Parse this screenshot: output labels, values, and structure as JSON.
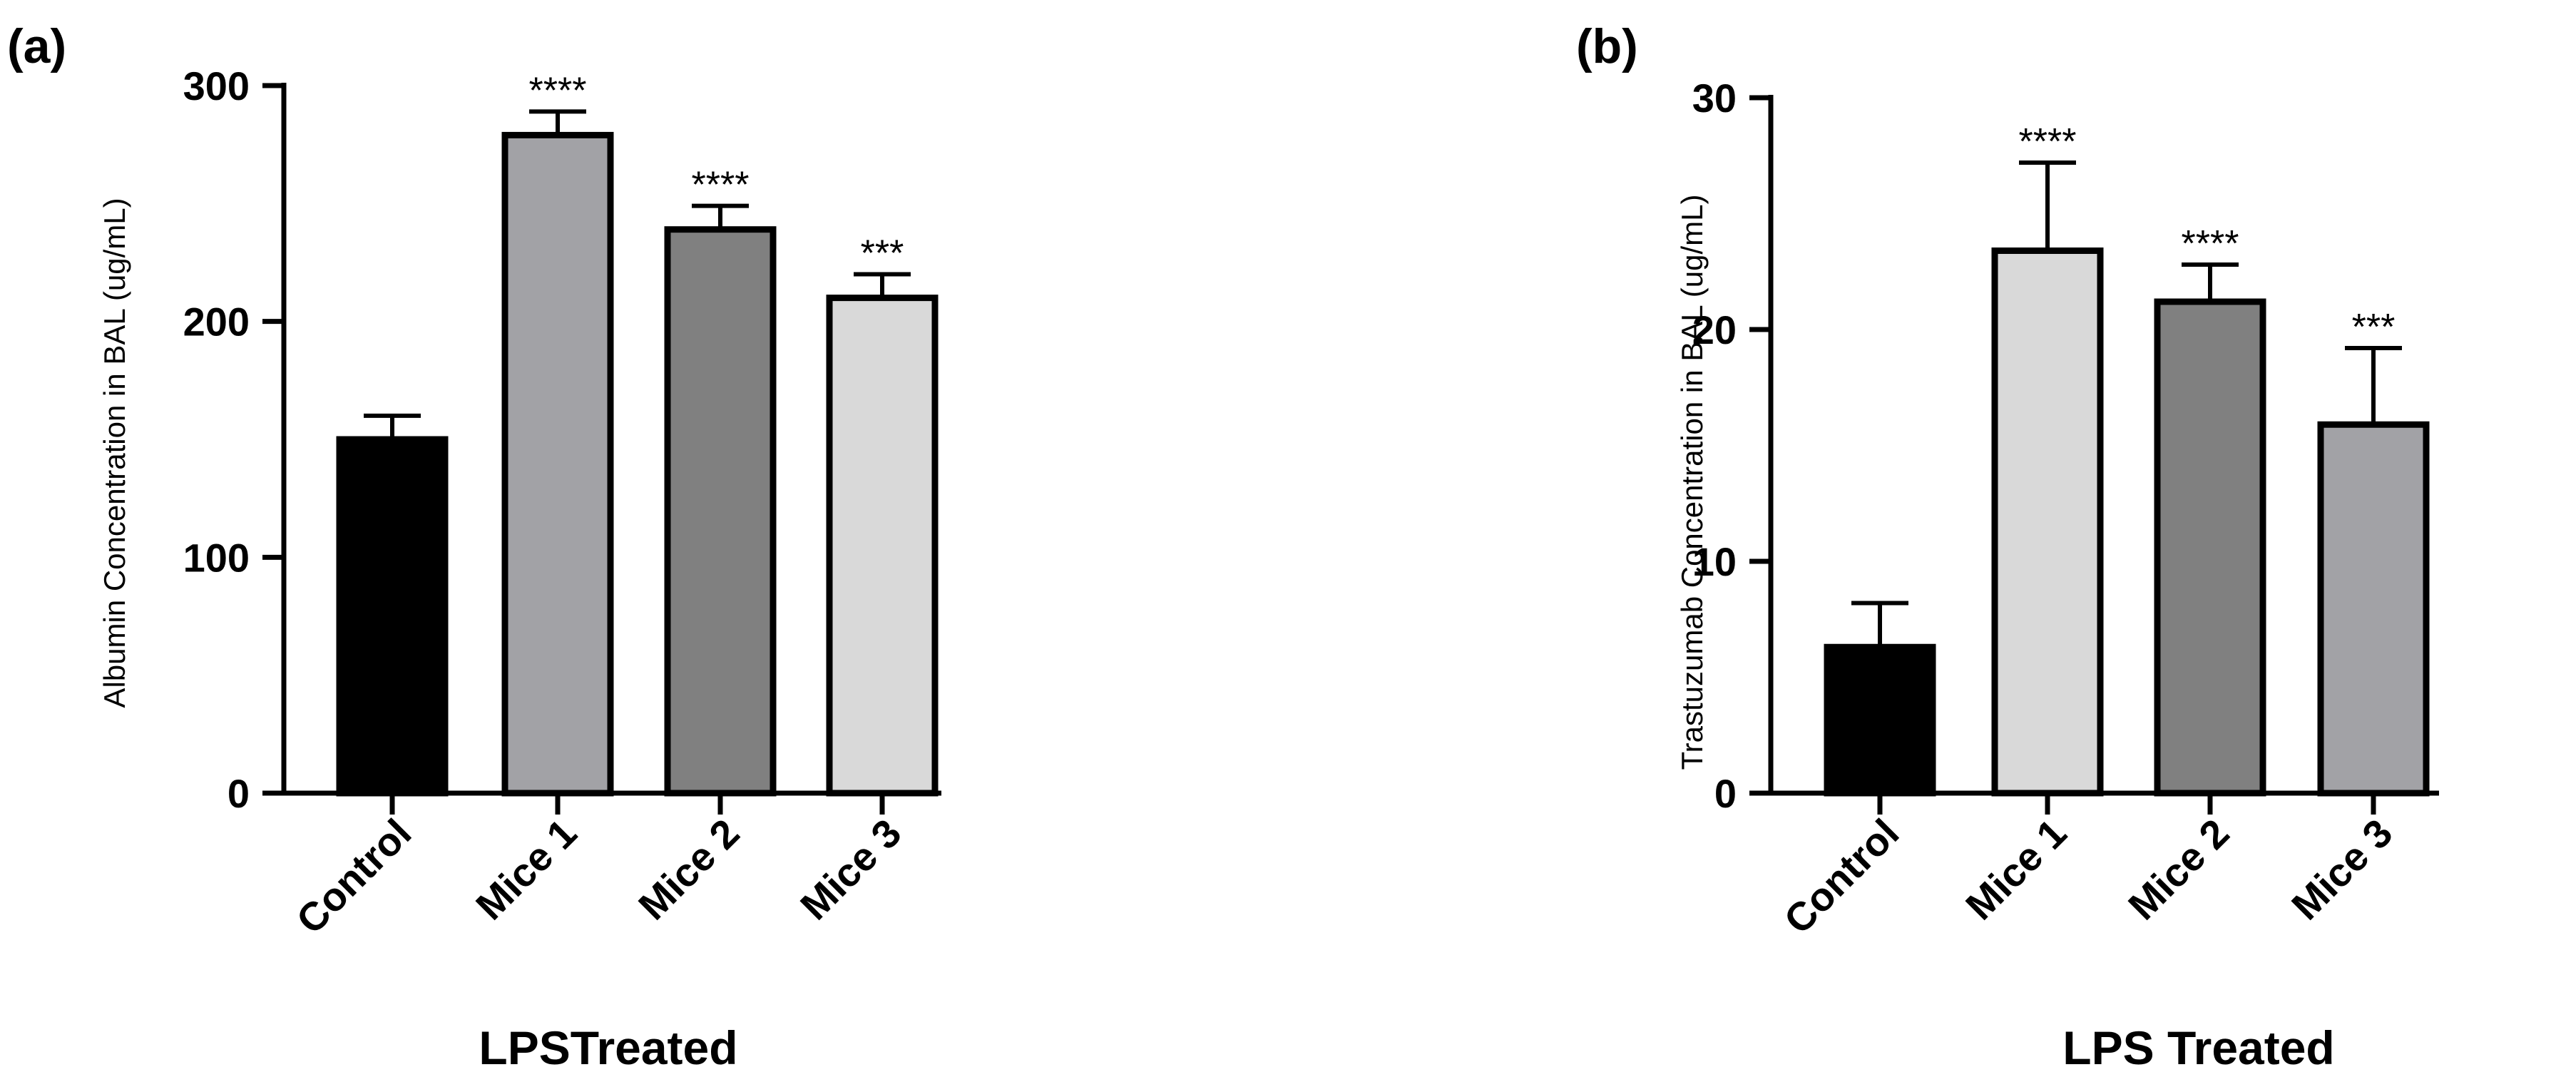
{
  "chart_data": [
    {
      "panel_label": "(a)",
      "type": "bar",
      "categories": [
        "Control",
        "Mice 1",
        "Mice 2",
        "Mice 3"
      ],
      "values": [
        150,
        279,
        239,
        210
      ],
      "errors": [
        10,
        10,
        10,
        10
      ],
      "significance": [
        "",
        "****",
        "****",
        "***"
      ],
      "colors": [
        "#000000",
        "#a2a2a6",
        "#808080",
        "#d9d9d9"
      ],
      "ylabel": "Albumin Concentration in BAL (ug/mL)",
      "xlabel": "LPSTreated",
      "ylim": [
        0,
        300
      ],
      "yticks": [
        0,
        100,
        200,
        300
      ],
      "ytick_labels": [
        "0",
        "100",
        "200",
        "300"
      ]
    },
    {
      "panel_label": "(b)",
      "type": "bar",
      "categories": [
        "Control",
        "Mice 1",
        "Mice 2",
        "Mice 3"
      ],
      "values": [
        6.3,
        23.4,
        21.2,
        15.9
      ],
      "errors": [
        1.9,
        3.8,
        1.6,
        3.3
      ],
      "significance": [
        "",
        "****",
        "****",
        "***"
      ],
      "colors": [
        "#000000",
        "#d9d9d9",
        "#808080",
        "#a2a2a6"
      ],
      "ylabel": "Trastuzumab Concentration in BAL (ug/mL)",
      "xlabel": "LPS Treated",
      "ylim": [
        0,
        30
      ],
      "yticks": [
        0,
        10,
        20,
        30
      ],
      "ytick_labels": [
        "0",
        "10",
        "20",
        "30"
      ]
    }
  ]
}
